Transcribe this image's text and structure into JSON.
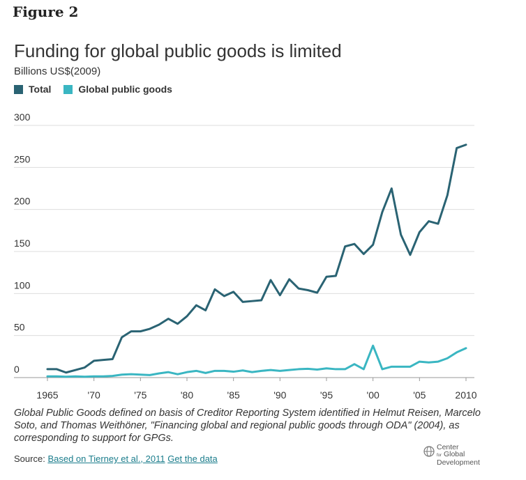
{
  "figure_label": "Figure 2",
  "chart_data": {
    "type": "line",
    "title": "Funding for global public goods is limited",
    "subtitle": "Billions US$(2009)",
    "x_tick_labels": [
      "1965",
      "'70",
      "'75",
      "'80",
      "'85",
      "'90",
      "'95",
      "'00",
      "'05",
      "2010"
    ],
    "x_ticks": [
      1965,
      1970,
      1975,
      1980,
      1985,
      1990,
      1995,
      2000,
      2005,
      2010
    ],
    "y_ticks": [
      0,
      50,
      100,
      150,
      200,
      250,
      300
    ],
    "xlim": [
      1965,
      2010
    ],
    "ylim": [
      0,
      300
    ],
    "grid": true,
    "legend_position": "top-left",
    "x": [
      1965,
      1966,
      1967,
      1968,
      1969,
      1970,
      1971,
      1972,
      1973,
      1974,
      1975,
      1976,
      1977,
      1978,
      1979,
      1980,
      1981,
      1982,
      1983,
      1984,
      1985,
      1986,
      1987,
      1988,
      1989,
      1990,
      1991,
      1992,
      1993,
      1994,
      1995,
      1996,
      1997,
      1998,
      1999,
      2000,
      2001,
      2002,
      2003,
      2004,
      2005,
      2006,
      2007,
      2008,
      2009,
      2010
    ],
    "series": [
      {
        "name": "Total",
        "color": "#2a6373",
        "values": [
          10,
          10,
          6,
          9,
          12,
          20,
          21,
          22,
          48,
          55,
          55,
          58,
          63,
          70,
          64,
          73,
          86,
          80,
          105,
          97,
          102,
          90,
          91,
          92,
          116,
          98,
          117,
          106,
          104,
          101,
          120,
          121,
          156,
          159,
          147,
          158,
          197,
          225,
          170,
          146,
          173,
          186,
          183,
          217,
          273,
          277
        ]
      },
      {
        "name": "Global public goods",
        "color": "#3ab6c2",
        "values": [
          1.5,
          1.5,
          1,
          1.5,
          1,
          1.5,
          1.5,
          2,
          3.5,
          4,
          3.5,
          3,
          5,
          6.5,
          4,
          6.5,
          8,
          5.5,
          8,
          8,
          7,
          8.5,
          6.5,
          8,
          9,
          8,
          9,
          10,
          10.5,
          9.5,
          11,
          10,
          10,
          16,
          10,
          38,
          10,
          13,
          13,
          13,
          19,
          18,
          19,
          23,
          30,
          35
        ]
      }
    ]
  },
  "note": "Global Public Goods defined on basis of Creditor Reporting System identified in Helmut Reisen, Marcelo Soto, and Thomas Weithöner, \"Financing global and regional public goods through ODA\" (2004), as corresponding to support for GPGs.",
  "source": {
    "prefix": "Source:",
    "link_based_on": "Based on Tierney et al., 2011",
    "link_get_data": "Get the data"
  },
  "logo": {
    "line1": "Center",
    "line2_small": "for",
    "line2": "Global",
    "line3": "Development"
  }
}
